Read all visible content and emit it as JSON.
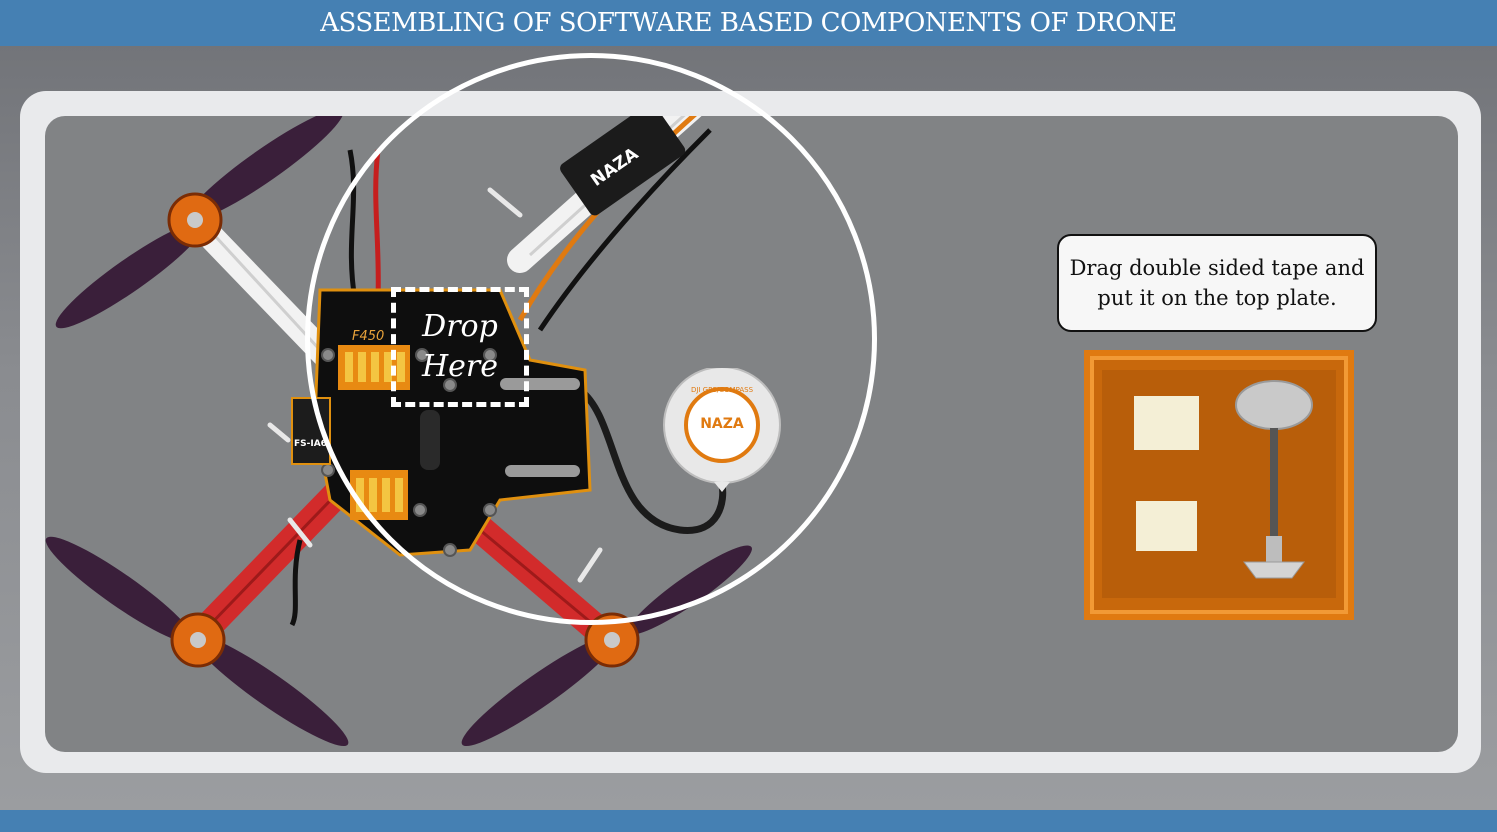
{
  "header": {
    "title": "ASSEMBLING OF SOFTWARE BASED COMPONENTS OF DRONE"
  },
  "drop_zone": {
    "line1": "Drop",
    "line2": "Here"
  },
  "instruction": {
    "text": "Drag double sided tape and put it on the top plate."
  },
  "labels": {
    "frame_brand": "F450",
    "flight_controller": "NAZA",
    "gps_module": "NAZA",
    "gps_caption": "DJI GPS/COMPASS",
    "receiver": "FS-IA6"
  },
  "colors": {
    "header_bar": "#4580b3",
    "stage": "#818385",
    "frame": "#e9eaec",
    "tray": "#e07a10",
    "tape": "#f4efd6"
  },
  "icons": [
    "quadcopter-drone-image",
    "gps-puck-image",
    "tape-tray-image",
    "gps-mast-image"
  ]
}
